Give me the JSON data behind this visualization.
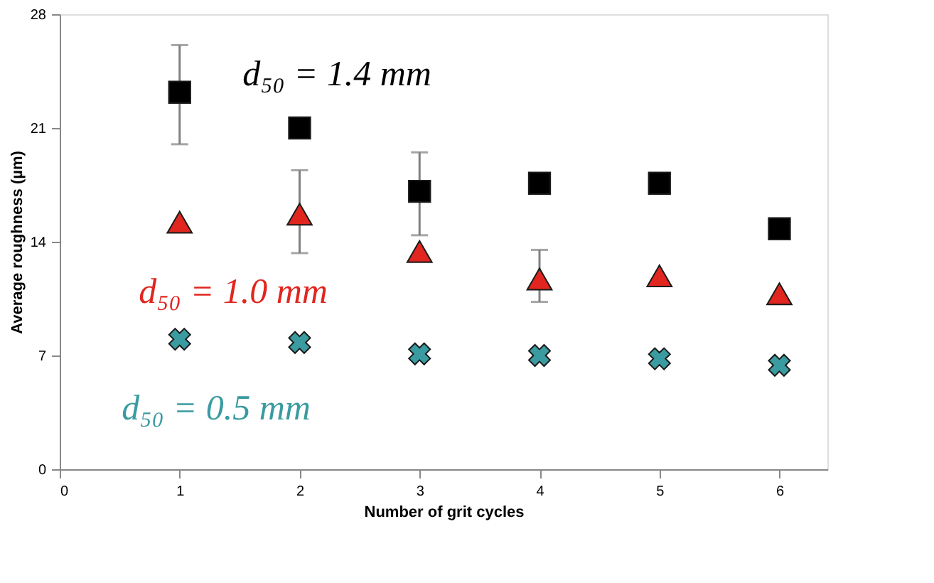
{
  "chart_data": {
    "type": "scatter",
    "xlabel": "Number of grit cycles",
    "ylabel": "Average roughness (µm)",
    "x": [
      1,
      2,
      3,
      4,
      5,
      6
    ],
    "xlim": [
      0,
      6.4
    ],
    "xticks": [
      0,
      1,
      2,
      3,
      4,
      5,
      6
    ],
    "ylim": [
      0,
      28
    ],
    "yticks": [
      0,
      7,
      14,
      21,
      28
    ],
    "series": [
      {
        "name": "d₅₀ = 1.4 mm",
        "color": "#000000",
        "marker": "square",
        "values": [
          23.2,
          21.0,
          17.1,
          17.6,
          17.6,
          14.8
        ],
        "errors": [
          [
            20.0,
            26.1
          ],
          null,
          [
            14.4,
            19.5
          ],
          null,
          null,
          null
        ]
      },
      {
        "name": "d₅₀ = 1.0 mm",
        "color": "#e0261f",
        "marker": "triangle",
        "values": [
          15.2,
          15.7,
          13.4,
          11.7,
          11.9,
          10.8
        ],
        "errors": [
          null,
          [
            13.3,
            18.4
          ],
          null,
          [
            10.3,
            13.5
          ],
          null,
          null
        ]
      },
      {
        "name": "d₅₀ = 0.5 mm",
        "color": "#3a9ba0",
        "marker": "cross",
        "values": [
          8.0,
          7.8,
          7.1,
          7.0,
          6.8,
          6.4
        ]
      }
    ]
  }
}
